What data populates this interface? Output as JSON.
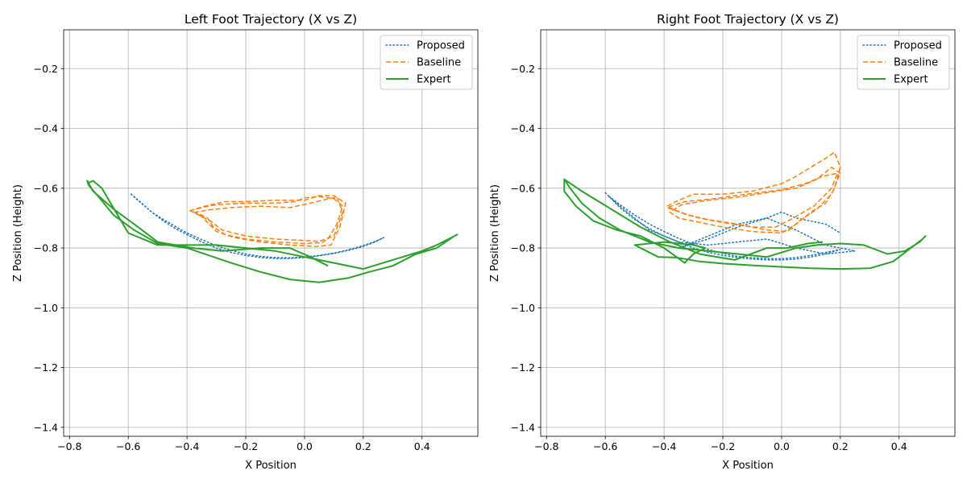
{
  "chart_data": [
    {
      "type": "line",
      "title": "Left Foot Trajectory (X vs Z)",
      "xlabel": "X Position",
      "ylabel": "Z Position (Height)",
      "xlim": [
        -0.82,
        0.59
      ],
      "ylim": [
        -1.43,
        -0.07
      ],
      "grid": true,
      "legend_position": "top-right",
      "xticks": [
        -0.8,
        -0.6,
        -0.4,
        -0.2,
        0.0,
        0.2,
        0.4
      ],
      "xtick_labels": [
        "−0.8",
        "−0.6",
        "−0.4",
        "−0.2",
        "0.0",
        "0.2",
        "0.4"
      ],
      "yticks": [
        -0.2,
        -0.4,
        -0.6,
        -0.8,
        -1.0,
        -1.2,
        -1.4
      ],
      "ytick_labels": [
        "−0.2",
        "−0.4",
        "−0.6",
        "−0.8",
        "−1.0",
        "−1.2",
        "−1.4"
      ],
      "series": [
        {
          "name": "Proposed",
          "style": "dotted",
          "color": "#1f77b4",
          "x": [
            -0.59,
            -0.56,
            -0.52,
            -0.48,
            -0.44,
            -0.4,
            -0.35,
            -0.3,
            -0.25,
            -0.2,
            -0.15,
            -0.1,
            -0.05,
            0.0,
            0.05,
            0.1,
            0.15,
            0.2,
            0.24,
            0.27,
            0.24,
            0.2,
            0.15,
            0.1,
            0.05,
            0.0,
            -0.05,
            -0.1,
            -0.15,
            -0.2,
            -0.25,
            -0.3,
            -0.35,
            -0.4,
            -0.44,
            -0.48,
            -0.52,
            -0.55,
            -0.58
          ],
          "y": [
            -0.62,
            -0.645,
            -0.68,
            -0.71,
            -0.735,
            -0.755,
            -0.78,
            -0.8,
            -0.815,
            -0.825,
            -0.832,
            -0.835,
            -0.835,
            -0.832,
            -0.826,
            -0.818,
            -0.808,
            -0.795,
            -0.78,
            -0.765,
            -0.778,
            -0.792,
            -0.806,
            -0.817,
            -0.825,
            -0.83,
            -0.833,
            -0.832,
            -0.828,
            -0.82,
            -0.808,
            -0.792,
            -0.772,
            -0.75,
            -0.728,
            -0.705,
            -0.68,
            -0.655,
            -0.63
          ]
        },
        {
          "name": "Baseline",
          "style": "dashed",
          "color": "#ff7f0e",
          "x": [
            -0.39,
            -0.35,
            -0.3,
            -0.2,
            -0.1,
            -0.03,
            0.0,
            0.05,
            0.1,
            0.13,
            0.11,
            0.08,
            0.06,
            0.0,
            -0.1,
            -0.2,
            -0.27,
            -0.31,
            -0.33,
            -0.36,
            -0.39,
            -0.34,
            -0.27,
            -0.2,
            -0.1,
            0.0,
            0.05,
            0.1,
            0.14,
            0.12,
            0.09,
            0.04,
            -0.05,
            -0.15,
            -0.24,
            -0.3,
            -0.33,
            -0.35,
            -0.37,
            -0.32,
            -0.25,
            -0.15,
            -0.05,
            0.02,
            0.06,
            0.11,
            0.13,
            0.1,
            0.05,
            0.0,
            -0.1,
            -0.2,
            -0.28,
            -0.32,
            -0.36,
            -0.39
          ],
          "y": [
            -0.675,
            -0.665,
            -0.655,
            -0.65,
            -0.65,
            -0.645,
            -0.632,
            -0.628,
            -0.635,
            -0.66,
            -0.72,
            -0.77,
            -0.782,
            -0.785,
            -0.78,
            -0.77,
            -0.755,
            -0.73,
            -0.7,
            -0.685,
            -0.675,
            -0.66,
            -0.645,
            -0.645,
            -0.64,
            -0.64,
            -0.625,
            -0.625,
            -0.65,
            -0.73,
            -0.79,
            -0.795,
            -0.79,
            -0.78,
            -0.765,
            -0.745,
            -0.715,
            -0.695,
            -0.68,
            -0.672,
            -0.665,
            -0.66,
            -0.665,
            -0.65,
            -0.64,
            -0.63,
            -0.68,
            -0.76,
            -0.778,
            -0.775,
            -0.77,
            -0.76,
            -0.74,
            -0.71,
            -0.69,
            -0.675
          ]
        },
        {
          "name": "Expert",
          "style": "solid",
          "color": "#2ca02c",
          "x": [
            -0.74,
            -0.72,
            -0.69,
            -0.66,
            -0.6,
            -0.55,
            -0.5,
            -0.4,
            -0.3,
            -0.2,
            -0.1,
            0.0,
            0.05,
            0.1,
            0.2,
            0.3,
            0.4,
            0.45,
            0.5,
            0.52,
            0.51,
            0.45,
            0.38,
            0.3,
            0.22,
            0.15,
            0.05,
            -0.05,
            -0.15,
            -0.25,
            -0.4,
            -0.5,
            -0.58,
            -0.65,
            -0.7,
            -0.735,
            -0.74,
            -0.72,
            -0.65,
            -0.58,
            -0.5,
            -0.38,
            -0.28,
            -0.15,
            -0.05,
            0.02,
            0.08
          ],
          "y": [
            -0.585,
            -0.575,
            -0.6,
            -0.65,
            -0.75,
            -0.77,
            -0.79,
            -0.79,
            -0.79,
            -0.8,
            -0.81,
            -0.83,
            -0.84,
            -0.85,
            -0.87,
            -0.84,
            -0.81,
            -0.79,
            -0.765,
            -0.755,
            -0.76,
            -0.8,
            -0.82,
            -0.86,
            -0.88,
            -0.9,
            -0.915,
            -0.905,
            -0.88,
            -0.85,
            -0.8,
            -0.785,
            -0.74,
            -0.69,
            -0.63,
            -0.59,
            -0.575,
            -0.61,
            -0.67,
            -0.72,
            -0.78,
            -0.8,
            -0.81,
            -0.8,
            -0.8,
            -0.83,
            -0.86
          ]
        }
      ]
    },
    {
      "type": "line",
      "title": "Right Foot Trajectory (X vs Z)",
      "xlabel": "X Position",
      "ylabel": "Z Position (Height)",
      "xlim": [
        -0.82,
        0.59
      ],
      "ylim": [
        -1.43,
        -0.07
      ],
      "grid": true,
      "legend_position": "top-right",
      "xticks": [
        -0.8,
        -0.6,
        -0.4,
        -0.2,
        0.0,
        0.2,
        0.4
      ],
      "xtick_labels": [
        "−0.8",
        "−0.6",
        "−0.4",
        "−0.2",
        "0.0",
        "0.2",
        "0.4"
      ],
      "yticks": [
        -0.2,
        -0.4,
        -0.6,
        -0.8,
        -1.0,
        -1.2,
        -1.4
      ],
      "ytick_labels": [
        "−0.2",
        "−0.4",
        "−0.6",
        "−0.8",
        "−1.0",
        "−1.2",
        "−1.4"
      ],
      "series": [
        {
          "name": "Proposed",
          "style": "dotted",
          "color": "#1f77b4",
          "x": [
            -0.6,
            -0.55,
            -0.5,
            -0.45,
            -0.4,
            -0.35,
            -0.3,
            -0.25,
            -0.2,
            -0.15,
            -0.1,
            -0.05,
            0.0,
            0.05,
            0.1,
            0.15,
            0.2,
            0.15,
            0.1,
            0.05,
            0.0,
            -0.05,
            -0.1,
            -0.15,
            -0.2,
            -0.25,
            -0.3,
            -0.35,
            -0.4,
            -0.45,
            -0.5,
            -0.55,
            -0.59,
            -0.55,
            -0.45,
            -0.35,
            -0.25,
            -0.15,
            -0.05,
            0.05,
            0.15,
            0.25,
            0.15,
            0.05,
            -0.05,
            -0.15,
            -0.25,
            -0.35,
            -0.25,
            -0.15,
            -0.05,
            0.0,
            0.05,
            0.15,
            0.2
          ],
          "y": [
            -0.615,
            -0.665,
            -0.705,
            -0.735,
            -0.76,
            -0.78,
            -0.8,
            -0.815,
            -0.825,
            -0.832,
            -0.837,
            -0.84,
            -0.84,
            -0.837,
            -0.83,
            -0.82,
            -0.805,
            -0.815,
            -0.825,
            -0.832,
            -0.836,
            -0.836,
            -0.833,
            -0.828,
            -0.818,
            -0.805,
            -0.788,
            -0.768,
            -0.745,
            -0.72,
            -0.69,
            -0.655,
            -0.625,
            -0.66,
            -0.74,
            -0.78,
            -0.79,
            -0.78,
            -0.77,
            -0.8,
            -0.82,
            -0.81,
            -0.79,
            -0.74,
            -0.7,
            -0.72,
            -0.76,
            -0.8,
            -0.77,
            -0.73,
            -0.7,
            -0.68,
            -0.7,
            -0.72,
            -0.75
          ]
        },
        {
          "name": "Baseline",
          "style": "dashed",
          "color": "#ff7f0e",
          "x": [
            -0.39,
            -0.35,
            -0.3,
            -0.2,
            -0.1,
            0.0,
            0.05,
            0.1,
            0.15,
            0.18,
            0.2,
            0.18,
            0.15,
            0.1,
            0.05,
            0.0,
            -0.1,
            -0.2,
            -0.3,
            -0.35,
            -0.38,
            -0.34,
            -0.25,
            -0.15,
            -0.05,
            0.05,
            0.12,
            0.17,
            0.2,
            0.17,
            0.12,
            0.06,
            0.02,
            -0.05,
            -0.15,
            -0.25,
            -0.32,
            -0.36,
            -0.39,
            -0.33,
            -0.23,
            -0.12,
            0.0,
            0.08,
            0.14,
            0.19,
            0.17,
            0.11,
            0.04,
            -0.02,
            -0.1,
            -0.2,
            -0.28,
            -0.33,
            -0.37,
            -0.39
          ],
          "y": [
            -0.66,
            -0.64,
            -0.62,
            -0.62,
            -0.61,
            -0.585,
            -0.56,
            -0.53,
            -0.5,
            -0.48,
            -0.53,
            -0.6,
            -0.65,
            -0.68,
            -0.72,
            -0.75,
            -0.745,
            -0.73,
            -0.71,
            -0.7,
            -0.68,
            -0.655,
            -0.64,
            -0.63,
            -0.615,
            -0.6,
            -0.57,
            -0.53,
            -0.55,
            -0.62,
            -0.67,
            -0.71,
            -0.745,
            -0.74,
            -0.72,
            -0.705,
            -0.69,
            -0.675,
            -0.665,
            -0.645,
            -0.635,
            -0.62,
            -0.605,
            -0.585,
            -0.56,
            -0.55,
            -0.6,
            -0.66,
            -0.7,
            -0.73,
            -0.73,
            -0.715,
            -0.7,
            -0.685,
            -0.67,
            -0.66
          ]
        },
        {
          "name": "Expert",
          "style": "solid",
          "color": "#2ca02c",
          "x": [
            -0.74,
            -0.72,
            -0.68,
            -0.62,
            -0.55,
            -0.45,
            -0.35,
            -0.25,
            -0.15,
            -0.05,
            0.05,
            0.12,
            0.2,
            0.28,
            0.36,
            0.42,
            0.47,
            0.49,
            0.48,
            0.44,
            0.38,
            0.3,
            0.2,
            0.1,
            0.0,
            -0.1,
            -0.2,
            -0.28,
            -0.32,
            -0.36,
            -0.42,
            -0.5,
            -0.4,
            -0.3,
            -0.26,
            -0.3,
            -0.33,
            -0.4,
            -0.48,
            -0.56,
            -0.64,
            -0.7,
            -0.74,
            -0.74,
            -0.68,
            -0.58,
            -0.48,
            -0.38,
            -0.28,
            -0.16,
            -0.05,
            0.02,
            0.09,
            0.14
          ],
          "y": [
            -0.57,
            -0.6,
            -0.65,
            -0.7,
            -0.74,
            -0.78,
            -0.8,
            -0.81,
            -0.82,
            -0.83,
            -0.8,
            -0.79,
            -0.785,
            -0.79,
            -0.82,
            -0.81,
            -0.78,
            -0.76,
            -0.77,
            -0.8,
            -0.845,
            -0.868,
            -0.87,
            -0.868,
            -0.863,
            -0.858,
            -0.852,
            -0.845,
            -0.838,
            -0.832,
            -0.83,
            -0.79,
            -0.78,
            -0.79,
            -0.8,
            -0.82,
            -0.85,
            -0.8,
            -0.76,
            -0.74,
            -0.71,
            -0.66,
            -0.61,
            -0.57,
            -0.61,
            -0.67,
            -0.73,
            -0.78,
            -0.82,
            -0.84,
            -0.8,
            -0.8,
            -0.785,
            -0.78
          ]
        }
      ]
    }
  ]
}
